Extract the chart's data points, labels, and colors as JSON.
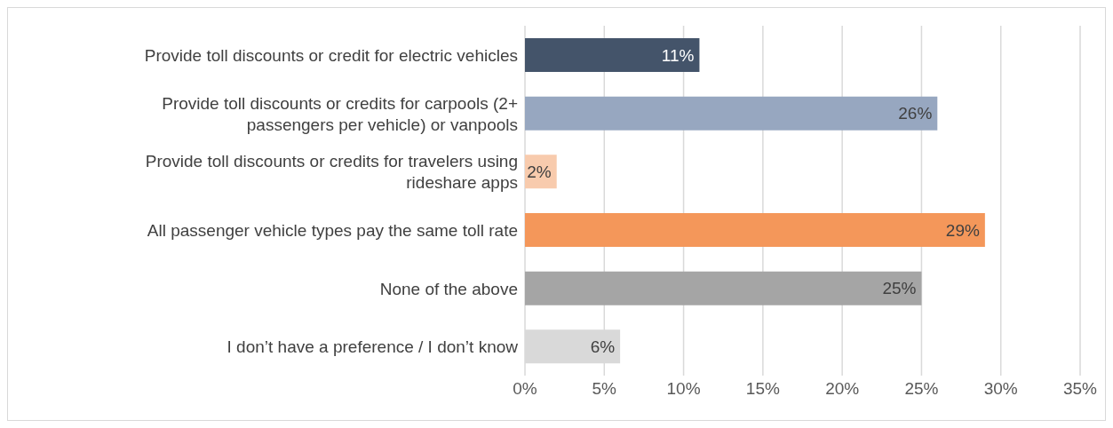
{
  "chart_data": {
    "type": "bar",
    "orientation": "horizontal",
    "categories": [
      "Provide toll discounts or credit for electric vehicles",
      "Provide toll discounts or credits for carpools (2+ passengers per vehicle) or vanpools",
      "Provide toll discounts or credits for travelers using rideshare apps",
      "All passenger vehicle types pay the same toll rate",
      "None of the above",
      "I don’t have a preference / I don’t know"
    ],
    "values": [
      11,
      26,
      2,
      29,
      25,
      6
    ],
    "colors": [
      "#44546a",
      "#97a7c0",
      "#f8cbad",
      "#f4975a",
      "#a5a5a5",
      "#d9d9d9"
    ],
    "value_labels": [
      "11%",
      "26%",
      "2%",
      "29%",
      "25%",
      "6%"
    ],
    "xlim": [
      0,
      35
    ],
    "xticks": [
      {
        "value": 0,
        "label": "0%"
      },
      {
        "value": 5,
        "label": "5%"
      },
      {
        "value": 10,
        "label": "10%"
      },
      {
        "value": 15,
        "label": "15%"
      },
      {
        "value": 20,
        "label": "20%"
      },
      {
        "value": 25,
        "label": "25%"
      },
      {
        "value": 30,
        "label": "30%"
      },
      {
        "value": 35,
        "label": "35%"
      }
    ],
    "grid": "x"
  }
}
